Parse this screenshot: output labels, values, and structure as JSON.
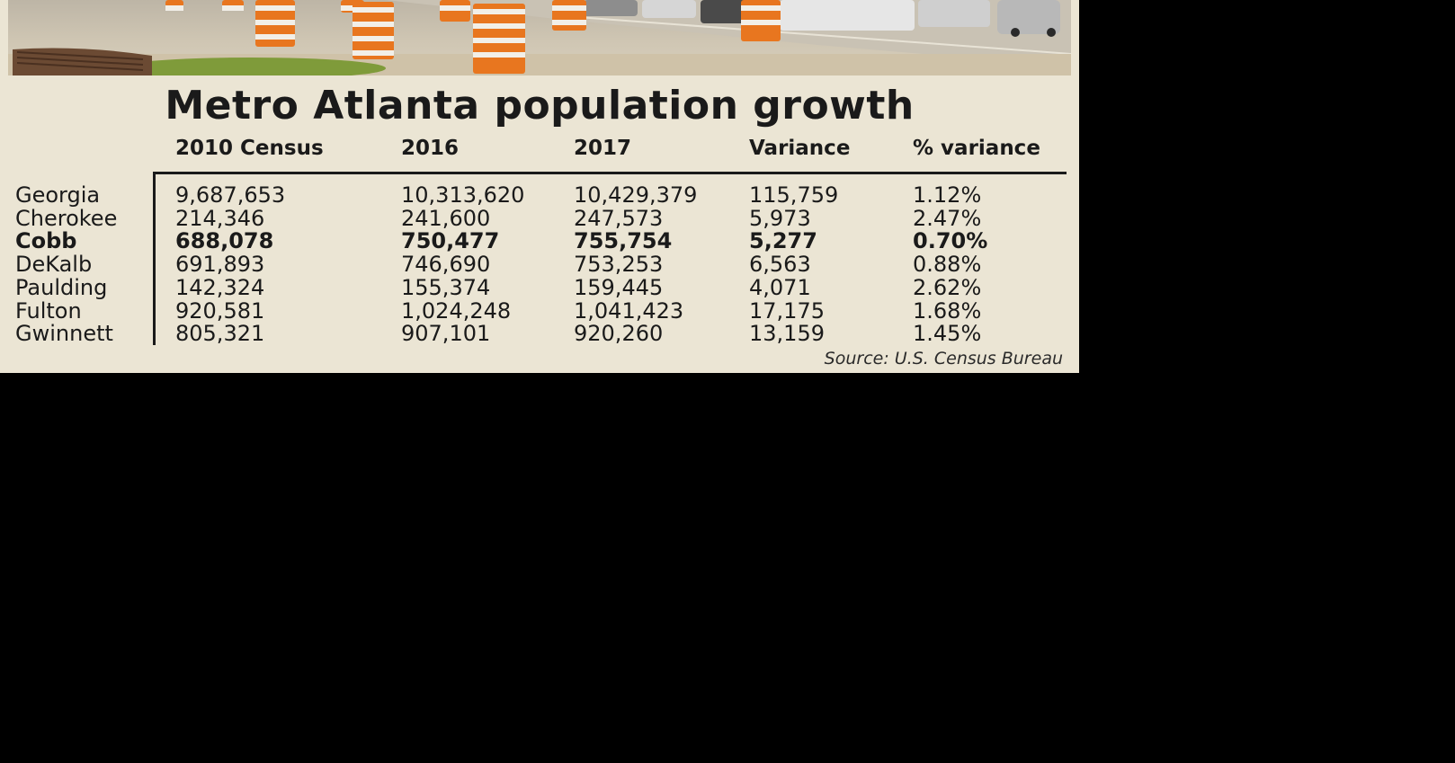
{
  "colors": {
    "panel": "#ebe5d4",
    "text": "#1a1a1a",
    "cone_orange": "#e8761f",
    "cone_white": "#f2efe8",
    "grass": "#7f9b3a"
  },
  "chart_data": {
    "type": "table",
    "title": "Metro Atlanta population growth",
    "columns": [
      "2010 Census",
      "2016",
      "2017",
      "Variance",
      "% variance"
    ],
    "rows": [
      {
        "label": "Georgia",
        "values": [
          "9,687,653",
          "10,313,620",
          "10,429,379",
          "115,759",
          "1.12%"
        ],
        "bold": false
      },
      {
        "label": "Cherokee",
        "values": [
          "214,346",
          "241,600",
          "247,573",
          "5,973",
          "2.47%"
        ],
        "bold": false
      },
      {
        "label": "Cobb",
        "values": [
          "688,078",
          "750,477",
          "755,754",
          "5,277",
          "0.70%"
        ],
        "bold": true
      },
      {
        "label": "DeKalb",
        "values": [
          "691,893",
          "746,690",
          "753,253",
          "6,563",
          "0.88%"
        ],
        "bold": false
      },
      {
        "label": "Paulding",
        "values": [
          "142,324",
          "155,374",
          "159,445",
          "4,071",
          "2.62%"
        ],
        "bold": false
      },
      {
        "label": "Fulton",
        "values": [
          "920,581",
          "1,024,248",
          "1,041,423",
          "17,175",
          "1.68%"
        ],
        "bold": false
      },
      {
        "label": "Gwinnett",
        "values": [
          "805,321",
          "907,101",
          "920,260",
          "13,159",
          "1.45%"
        ],
        "bold": false
      }
    ],
    "source": "Source: U.S. Census Bureau"
  }
}
